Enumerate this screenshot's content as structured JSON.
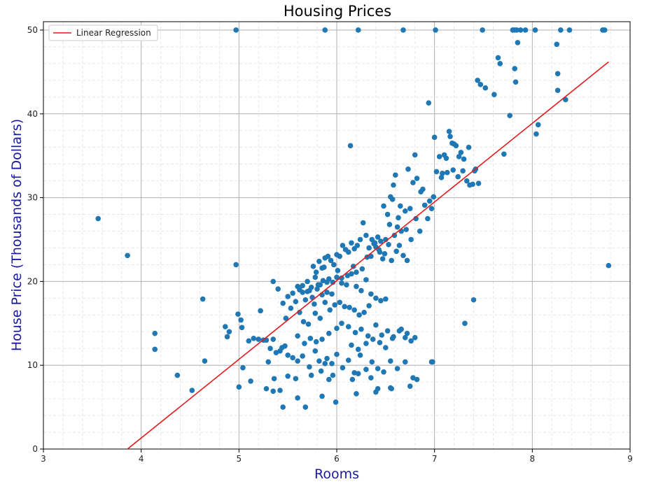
{
  "chart_data": {
    "type": "scatter",
    "title": "Housing Prices",
    "xlabel": "Rooms",
    "ylabel": "House Price (Thousands of Dollars)",
    "xlim": [
      3,
      9
    ],
    "ylim": [
      0,
      51
    ],
    "xticks": [
      "3",
      "4",
      "5",
      "6",
      "7",
      "8",
      "9"
    ],
    "yticks": [
      "0",
      "10",
      "20",
      "30",
      "40",
      "50"
    ],
    "grid": true,
    "minor_grid": true,
    "legend": {
      "placement": "top-left",
      "entries": [
        "Linear Regression"
      ]
    },
    "colors": {
      "points": "#1f77b4",
      "regression": "#e41a1c"
    },
    "regression": {
      "name": "Linear Regression",
      "x": [
        3.86,
        8.78
      ],
      "y": [
        0.0,
        46.2
      ]
    },
    "points": {
      "x": [
        4.97,
        5.88,
        6.22,
        6.68,
        7.01,
        7.49,
        7.8,
        7.82,
        7.84,
        7.88,
        7.93,
        8.03,
        8.29,
        8.38,
        8.72,
        8.74,
        7.85,
        7.82,
        8.25,
        7.67,
        7.65,
        7.83,
        7.44,
        7.47,
        7.52,
        7.61,
        8.26,
        8.26,
        8.34,
        7.77,
        8.06,
        8.04,
        8.78,
        7.71,
        6.94,
        7.0,
        7.15,
        7.16,
        7.2,
        7.18,
        7.22,
        7.27,
        7.25,
        7.3,
        7.35,
        7.1,
        7.12,
        7.05,
        7.42,
        7.41,
        7.39,
        7.36,
        7.33,
        7.45,
        7.02,
        7.07,
        7.13,
        7.08,
        7.19,
        7.24,
        7.29,
        6.14,
        6.8,
        6.88,
        6.73,
        6.58,
        6.6,
        6.55,
        6.78,
        6.82,
        6.86,
        6.9,
        6.95,
        6.99,
        6.97,
        6.93,
        6.65,
        6.7,
        6.75,
        6.62,
        6.52,
        6.48,
        6.57,
        6.81,
        6.85,
        6.76,
        6.71,
        6.66,
        6.63,
        6.59,
        6.54,
        6.5,
        6.45,
        6.42,
        6.39,
        6.36,
        6.33,
        6.3,
        6.27,
        6.24,
        6.21,
        6.18,
        6.15,
        6.12,
        6.09,
        6.06,
        6.03,
        6.0,
        5.97,
        5.94,
        5.91,
        5.88,
        5.85,
        5.82,
        5.79,
        5.76,
        6.35,
        6.4,
        6.44,
        6.47,
        6.31,
        6.26,
        6.2,
        6.17,
        6.11,
        6.05,
        6.01,
        5.96,
        5.92,
        5.87,
        5.83,
        5.78,
        5.74,
        5.7,
        5.65,
        5.62,
        6.38,
        6.43,
        6.49,
        6.53,
        6.56,
        6.61,
        6.64,
        6.68,
        6.72,
        6.0,
        6.05,
        6.1,
        6.15,
        6.2,
        6.25,
        6.3,
        5.95,
        5.9,
        5.85,
        5.8,
        5.75,
        5.7,
        6.35,
        6.4,
        6.45,
        6.5,
        5.98,
        6.03,
        6.08,
        6.13,
        6.18,
        6.23,
        6.28,
        6.33,
        5.93,
        5.88,
        5.83,
        5.78,
        5.6,
        5.55,
        5.5,
        5.45,
        5.4,
        5.35,
        5.65,
        5.68,
        5.72,
        5.77,
        5.81,
        5.86,
        5.9,
        5.58,
        5.53,
        5.48,
        5.62,
        5.66,
        5.71,
        6.0,
        6.05,
        6.12,
        6.19,
        6.25,
        6.32,
        6.4,
        6.46,
        6.52,
        6.58,
        6.66,
        6.72,
        6.8,
        5.92,
        5.85,
        5.79,
        5.73,
        5.67,
        5.6,
        6.15,
        6.22,
        6.3,
        6.37,
        6.44,
        6.5,
        6.57,
        6.64,
        6.7,
        6.76,
        5.32,
        5.35,
        5.42,
        5.47,
        5.25,
        5.3,
        5.38,
        5.44,
        5.5,
        5.55,
        5.2,
        5.6,
        5.65,
        5.72,
        5.78,
        5.84,
        5.9,
        5.95,
        6.0,
        6.06,
        6.12,
        6.18,
        6.24,
        6.3,
        6.36,
        6.42,
        6.48,
        6.55,
        6.62,
        6.7,
        6.78,
        4.97,
        4.99,
        5.02,
        4.9,
        4.88,
        4.86,
        5.03,
        5.1,
        5.15,
        5.28,
        5.22,
        5.0,
        5.04,
        5.12,
        5.28,
        5.36,
        5.42,
        5.5,
        5.58,
        5.74,
        5.82,
        5.88,
        5.92,
        5.96,
        6.16,
        6.22,
        6.35,
        6.42,
        6.56,
        6.75,
        6.82,
        6.98,
        5.45,
        5.68,
        5.99,
        5.85,
        5.6,
        5.35,
        6.4,
        6.2,
        6.55,
        3.56,
        3.86,
        4.14,
        4.14,
        4.37,
        4.52,
        4.63,
        4.65,
        7.4,
        7.31,
        6.97
      ],
      "y": [
        50,
        50,
        50,
        50,
        50,
        50,
        50,
        50,
        50,
        50,
        50,
        50,
        50,
        50,
        50,
        50,
        48.5,
        45.4,
        48.3,
        46.0,
        46.7,
        43.8,
        44.0,
        43.5,
        43.1,
        42.3,
        44.8,
        42.8,
        41.7,
        39.8,
        38.7,
        37.6,
        21.9,
        35.2,
        41.3,
        37.2,
        37.9,
        37.3,
        36.4,
        36.5,
        36.2,
        35.4,
        34.9,
        34.6,
        36.0,
        35.1,
        34.7,
        34.9,
        33.4,
        33.2,
        31.6,
        31.5,
        32.0,
        31.7,
        33.1,
        32.4,
        33.0,
        32.9,
        33.3,
        32.5,
        33.2,
        36.2,
        35.1,
        31.0,
        33.4,
        31.5,
        32.7,
        30.1,
        31.8,
        32.3,
        30.7,
        29.1,
        29.6,
        30.1,
        28.7,
        27.5,
        29.0,
        28.4,
        28.7,
        26.5,
        28.0,
        29.0,
        29.8,
        27.5,
        26.0,
        25.0,
        26.2,
        26.0,
        27.6,
        25.5,
        26.8,
        25.0,
        24.8,
        25.3,
        24.6,
        25.0,
        24.0,
        25.5,
        27.0,
        25.0,
        24.3,
        23.9,
        24.6,
        23.5,
        23.8,
        24.3,
        23.0,
        23.2,
        22.0,
        22.5,
        23.0,
        22.8,
        21.6,
        22.4,
        21.1,
        21.8,
        23.0,
        24.1,
        23.5,
        22.7,
        22.9,
        21.5,
        21.1,
        21.8,
        20.7,
        20.4,
        21.3,
        19.9,
        20.3,
        21.7,
        19.6,
        20.5,
        19.3,
        20.0,
        19.5,
        19.0,
        24.5,
        23.8,
        23.3,
        24.4,
        22.5,
        23.6,
        24.3,
        23.1,
        22.5,
        20.5,
        19.8,
        19.6,
        20.9,
        19.4,
        18.9,
        20.2,
        18.5,
        18.7,
        18.4,
        19.1,
        18.1,
        18.8,
        18.5,
        18.0,
        17.7,
        17.9,
        17.2,
        17.5,
        17.0,
        16.9,
        16.6,
        16.0,
        16.3,
        17.1,
        16.6,
        17.5,
        15.6,
        16.2,
        19.4,
        18.6,
        18.2,
        17.4,
        19.1,
        20.0,
        18.7,
        17.8,
        18.9,
        17.3,
        19.6,
        20.1,
        19.9,
        17.6,
        16.8,
        15.6,
        16.3,
        15.2,
        14.9,
        14.4,
        15.0,
        14.6,
        13.9,
        14.3,
        13.5,
        14.8,
        13.6,
        14.1,
        13.4,
        14.3,
        13.8,
        13.3,
        13.8,
        13.1,
        12.8,
        13.2,
        12.6,
        13.5,
        12.4,
        11.9,
        12.6,
        13.1,
        12.7,
        12.1,
        13.2,
        14.1,
        13.3,
        12.9,
        12.0,
        13.1,
        11.7,
        12.3,
        13.0,
        10.4,
        11.5,
        12.1,
        11.2,
        10.9,
        13.1,
        10.5,
        11.1,
        9.8,
        11.7,
        9.3,
        10.8,
        10.2,
        11.3,
        9.7,
        10.6,
        9.1,
        11.2,
        9.5,
        10.4,
        9.6,
        9.2,
        10.5,
        9.6,
        10.4,
        8.5,
        22.0,
        16.1,
        15.4,
        14.0,
        13.4,
        14.6,
        14.5,
        12.9,
        13.2,
        13.0,
        16.5,
        7.4,
        9.7,
        8.1,
        7.2,
        8.4,
        7.0,
        8.7,
        8.4,
        8.8,
        10.5,
        10.2,
        8.3,
        8.8,
        8.3,
        9.0,
        8.5,
        7.2,
        7.2,
        7.5,
        8.3,
        10.4,
        5.0,
        5.0,
        5.6,
        6.3,
        6.1,
        6.9,
        6.8,
        6.6,
        7.3,
        27.5,
        23.1,
        13.8,
        11.9,
        8.8,
        7.0,
        17.9,
        10.5,
        17.8,
        15.0,
        10.4
      ]
    }
  }
}
